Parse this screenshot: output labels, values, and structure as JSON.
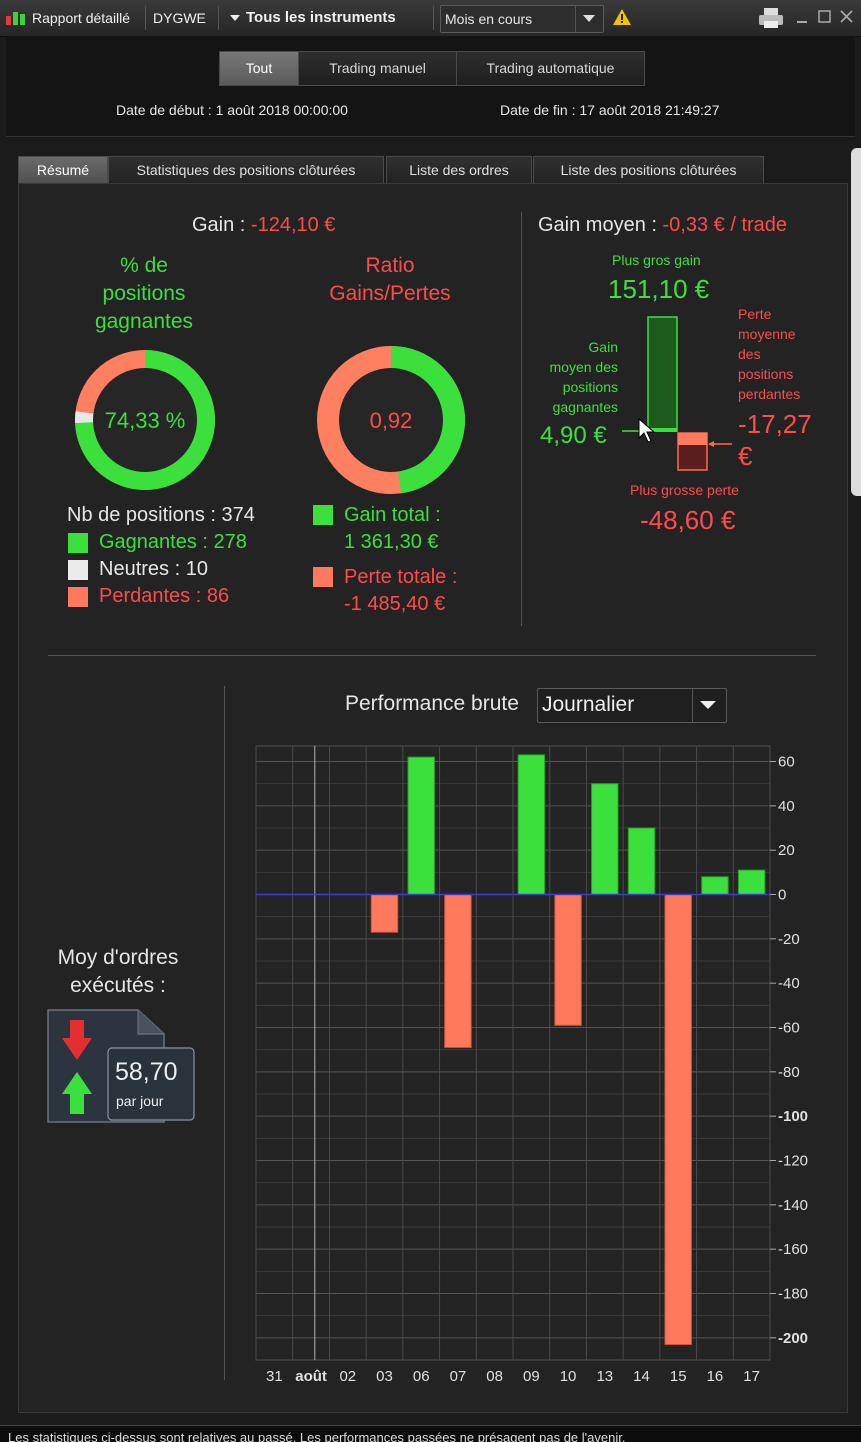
{
  "titlebar": {
    "report_label": "Rapport détaillé",
    "account": "DYGWE",
    "instruments": "Tous les instruments",
    "period": "Mois en cours",
    "warning_icon": "warning-icon",
    "print_icon": "print-icon"
  },
  "header": {
    "segments": [
      "Tout",
      "Trading manuel",
      "Trading automatique"
    ],
    "active_segment": "Tout",
    "start_date": "Date de début :  1 août 2018 00:00:00",
    "end_date": "Date de fin :  17 août 2018 21:49:27"
  },
  "tabs": [
    "Résumé",
    "Statistiques des positions clôturées",
    "Liste des ordres",
    "Liste des positions clôturées"
  ],
  "active_tab": "Résumé",
  "summary": {
    "gain_label": "Gain : ",
    "gain_value": "-124,10 €",
    "win_pct_title": "% de\npositions\ngagnantes",
    "win_pct_value": "74,33 %",
    "win_pct_fraction": 0.7433,
    "neutral_fraction": 0.0267,
    "ratio_title": "Ratio\nGains/Pertes",
    "ratio_value": "0,92",
    "ratio_gain_fraction": 0.478,
    "nb_positions_label": "Nb de positions : 374",
    "winners_label": "Gagnantes : 278",
    "neutral_label": "Neutres : 10",
    "losers_label": "Perdantes : 86",
    "total_gain_label": "Gain total :",
    "total_gain_value": "1 361,30 €",
    "total_loss_label": "Perte totale :",
    "total_loss_value": "-1 485,40 €"
  },
  "avg_panel": {
    "avg_gain_label": "Gain moyen : ",
    "avg_gain_value": "-0,33 € / trade",
    "biggest_gain_label": "Plus gros gain",
    "biggest_gain_value": "151,10 €",
    "avg_winning_label": "Gain\nmoyen des\npositions\ngagnantes",
    "avg_winning_value": "4,90 €",
    "avg_losing_label": "Perte\nmoyenne\ndes\npositions\nperdantes",
    "avg_losing_value": "-17,27\n€",
    "biggest_loss_label": "Plus grosse perte",
    "biggest_loss_value": "-48,60 €"
  },
  "orders": {
    "title": "Moy d'ordres\nexécutés :",
    "value": "58,70",
    "unit": "par jour"
  },
  "performance": {
    "title": "Performance brute",
    "frequency": "Journalier"
  },
  "chart_data": {
    "type": "bar",
    "title": "Performance brute",
    "categories": [
      "31",
      "août",
      "02",
      "03",
      "06",
      "07",
      "08",
      "09",
      "10",
      "13",
      "14",
      "15",
      "16",
      "17"
    ],
    "values": [
      0,
      0,
      0,
      -17,
      62,
      -69,
      0,
      63,
      -59,
      50,
      30,
      -203,
      8,
      11
    ],
    "ylim": [
      -210,
      67
    ],
    "yticks": [
      60,
      40,
      20,
      0,
      -20,
      -40,
      -60,
      -80,
      -100,
      -120,
      -140,
      -160,
      -180,
      -200
    ],
    "bold_ticks": [
      -100,
      -200
    ],
    "positive_color": "#3ce03c",
    "negative_color": "#ff7a5c",
    "grid": true
  },
  "footer": {
    "disclaimer": "Les statistiques ci-dessus sont relatives au passé. Les performances passées ne présagent pas de l'avenir."
  }
}
